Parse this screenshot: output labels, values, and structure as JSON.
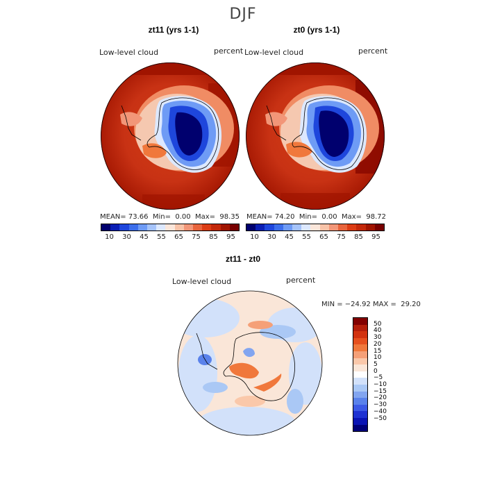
{
  "season": "DJF",
  "panels": [
    {
      "title": "zt11 (yrs 1-1)",
      "field_label": "Low-level cloud",
      "units": "percent",
      "mean_label": "MEAN=",
      "mean": "73.66",
      "min_label": "Min=",
      "min": "0.00",
      "max_label": "Max=",
      "max": "98.35"
    },
    {
      "title": "zt0 (yrs 1-1)",
      "field_label": "Low-level cloud",
      "units": "percent",
      "mean_label": "MEAN=",
      "mean": "74.20",
      "min_label": "Min=",
      "min": "0.00",
      "max_label": "Max=",
      "max": "98.72"
    }
  ],
  "abs_colorbar": {
    "colors": [
      "#00006e",
      "#0a1eb4",
      "#1e46dc",
      "#3c6eeb",
      "#6e9bf5",
      "#a5c3fa",
      "#dce8ff",
      "#fbe6da",
      "#f8c3a8",
      "#f29678",
      "#e8643c",
      "#dc3c14",
      "#c3280a",
      "#a01400",
      "#780000"
    ],
    "tick_labels": [
      "10",
      "30",
      "45",
      "55",
      "65",
      "75",
      "85",
      "95"
    ]
  },
  "diff_panel": {
    "title": "zt11 - zt0",
    "field_label": "Low-level cloud",
    "units": "percent",
    "minmax_text": "MIN = −24.92 MAX =  29.20"
  },
  "diff_colorbar": {
    "colors": [
      "#820000",
      "#b41e0a",
      "#d2320f",
      "#e6501e",
      "#f0783c",
      "#f5a078",
      "#fac8aa",
      "#fae6d8",
      "#ffffff",
      "#d2e1fa",
      "#aac8f5",
      "#82a5f0",
      "#5a82eb",
      "#3c5ae6",
      "#1e32d2",
      "#0a14b4",
      "#000078"
    ],
    "tick_labels": [
      "50",
      "40",
      "30",
      "20",
      "15",
      "10",
      "5",
      "0",
      "−5",
      "−10",
      "−15",
      "−20",
      "−30",
      "−40",
      "−50"
    ]
  }
}
